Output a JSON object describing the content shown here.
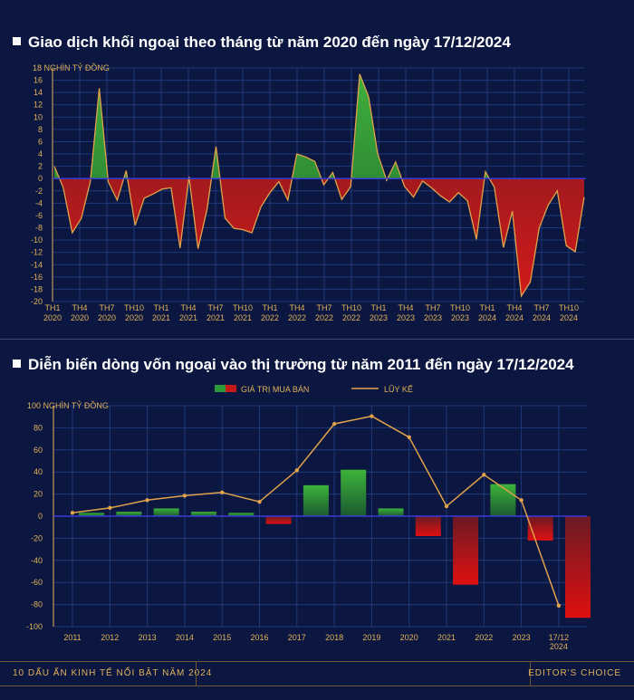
{
  "chart_data": [
    {
      "type": "area",
      "title": "Giao dịch khối ngoại theo tháng từ năm 2020 đến ngày 17/12/2024",
      "ylabel": "18 NGHÌN TỶ ĐỒNG",
      "ylim": [
        -20,
        18
      ],
      "yticks": [
        16,
        14,
        12,
        10,
        8,
        6,
        4,
        2,
        0,
        -2,
        -4,
        -6,
        -8,
        -10,
        -12,
        -14,
        -16,
        -18,
        -20
      ],
      "xtick_labels": [
        [
          "TH1",
          "2020"
        ],
        [
          "TH4",
          "2020"
        ],
        [
          "TH7",
          "2020"
        ],
        [
          "TH10",
          "2020"
        ],
        [
          "TH1",
          "2021"
        ],
        [
          "TH4",
          "2021"
        ],
        [
          "TH7",
          "2021"
        ],
        [
          "TH10",
          "2021"
        ],
        [
          "TH1",
          "2022"
        ],
        [
          "TH4",
          "2022"
        ],
        [
          "TH7",
          "2022"
        ],
        [
          "TH10",
          "2022"
        ],
        [
          "TH1",
          "2023"
        ],
        [
          "TH4",
          "2023"
        ],
        [
          "TH7",
          "2023"
        ],
        [
          "TH10",
          "2023"
        ],
        [
          "TH1",
          "2024"
        ],
        [
          "TH4",
          "2024"
        ],
        [
          "TH7",
          "2024"
        ],
        [
          "TH10",
          "2024"
        ]
      ],
      "values": [
        2,
        -1.5,
        -8.8,
        -6.5,
        -0.5,
        14.7,
        -0.5,
        -3.5,
        1.3,
        -7.6,
        -3.2,
        -2.5,
        -1.7,
        -1.5,
        -11.3,
        0.3,
        -11.4,
        -5,
        5.2,
        -6.4,
        -8.1,
        -8.3,
        -8.8,
        -4.6,
        -2.3,
        -0.5,
        -3.5,
        4,
        3.5,
        2.8,
        -1,
        1,
        -3.4,
        -1.3,
        17,
        13.3,
        4.1,
        -0.3,
        2.7,
        -1.3,
        -3,
        -0.4,
        -1.5,
        -2.8,
        -3.8,
        -2.3,
        -3.6,
        -9.9,
        1.1,
        -1.4,
        -11.2,
        -5.3,
        -19.1,
        -16.8,
        -8,
        -4.3,
        -2,
        -10.9,
        -11.9,
        -3
      ]
    },
    {
      "type": "bar",
      "title": "Diễn biến dòng vốn ngoại vào thị trường từ năm 2011 đến ngày 17/12/2024",
      "ylabel": "100 NGHÌN TỶ ĐỒNG",
      "ylim": [
        -100,
        100
      ],
      "yticks": [
        80,
        60,
        40,
        20,
        0,
        -20,
        -40,
        -60,
        -80,
        -100
      ],
      "categories": [
        "2011",
        "2012",
        "2013",
        "2014",
        "2015",
        "2016",
        "2017",
        "2018",
        "2019",
        "2020",
        "2021",
        "2022",
        "2023",
        "17/12 2024"
      ],
      "category_labels": [
        [
          "2011"
        ],
        [
          "2012"
        ],
        [
          "2013"
        ],
        [
          "2014"
        ],
        [
          "2015"
        ],
        [
          "2016"
        ],
        [
          "2017"
        ],
        [
          "2018"
        ],
        [
          "2019"
        ],
        [
          "2020"
        ],
        [
          "2021"
        ],
        [
          "2022"
        ],
        [
          "2023"
        ],
        [
          "17/12",
          "2024"
        ]
      ],
      "legend": [
        "GIÁ TRỊ MUA BÁN",
        "LŨY KẾ"
      ],
      "series": [
        {
          "name": "GIÁ TRỊ MUA BÁN",
          "type": "bar",
          "values": [
            3,
            4,
            7,
            4,
            3,
            -7,
            28,
            42,
            7,
            -18,
            -62,
            29,
            -22,
            -92
          ]
        },
        {
          "name": "LŨY KẾ",
          "type": "line",
          "values": [
            3,
            7.5,
            14.5,
            18.5,
            21.5,
            13,
            41.5,
            83.5,
            90.5,
            71.5,
            9,
            37.5,
            14.5,
            -81
          ]
        }
      ]
    }
  ],
  "footer": {
    "left": "10 DẤU ẤN KINH TẾ NỔI BẬT NĂM 2024",
    "right": "EDITOR'S CHOICE"
  },
  "colors": {
    "background": "#0b1740",
    "grid": "#1f3a7a",
    "axis": "#e2b15a",
    "positive": "#2a9a3a",
    "negative": "#c41a1a",
    "line": "#e0a24a"
  }
}
